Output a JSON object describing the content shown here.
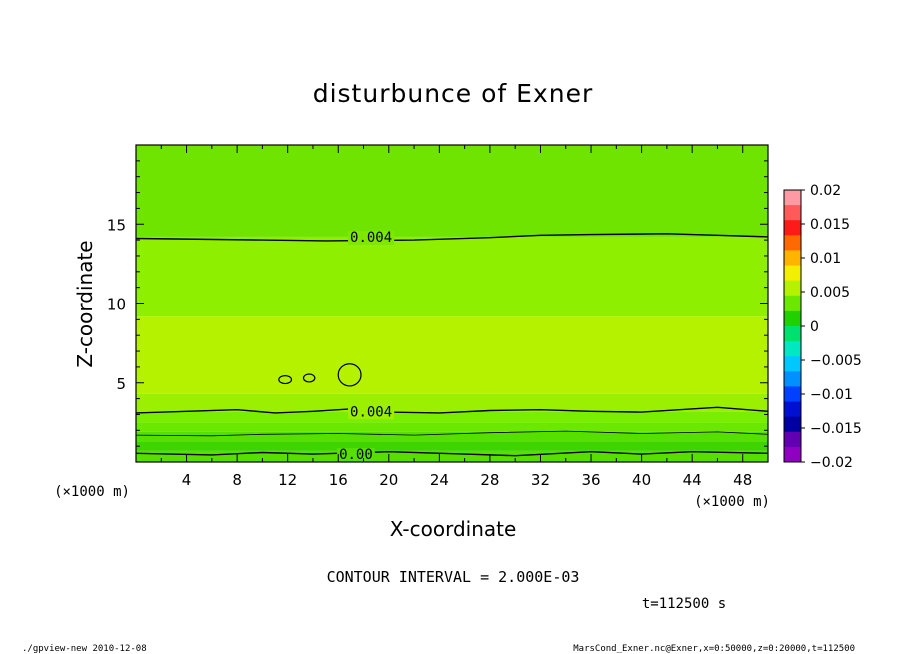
{
  "chart_data": {
    "type": "heatmap",
    "title": "disturbunce of Exner",
    "xlabel": "X-coordinate",
    "ylabel": "Z-coordinate",
    "x_unit": "(×1000 m)",
    "y_unit": "(×1000 m)",
    "xlim": [
      0,
      50
    ],
    "ylim": [
      0,
      20
    ],
    "x_ticks": [
      "4",
      "8",
      "12",
      "16",
      "20",
      "24",
      "28",
      "32",
      "36",
      "40",
      "44",
      "48"
    ],
    "y_ticks": [
      "5",
      "10",
      "15"
    ],
    "contour_labels": [
      {
        "text": "0.004",
        "x": 18.6,
        "z": 14.2
      },
      {
        "text": "0.004",
        "x": 18.6,
        "z": 3.2
      },
      {
        "text": "0.00",
        "x": 17.4,
        "z": 0.5
      }
    ],
    "contours": [
      {
        "level": 0.004,
        "z_profile": [
          [
            0,
            14.1
          ],
          [
            10,
            14.0
          ],
          [
            15,
            13.95
          ],
          [
            22,
            14.0
          ],
          [
            28,
            14.15
          ],
          [
            32,
            14.3
          ],
          [
            36,
            14.35
          ],
          [
            42,
            14.4
          ],
          [
            46,
            14.3
          ],
          [
            50,
            14.2
          ]
        ]
      },
      {
        "level": 0.004,
        "z_profile": [
          [
            0,
            3.1
          ],
          [
            4,
            3.2
          ],
          [
            8,
            3.3
          ],
          [
            11,
            3.1
          ],
          [
            14,
            3.2
          ],
          [
            18,
            3.4
          ],
          [
            20,
            3.15
          ],
          [
            24,
            3.1
          ],
          [
            28,
            3.25
          ],
          [
            32,
            3.3
          ],
          [
            36,
            3.2
          ],
          [
            40,
            3.15
          ],
          [
            46,
            3.45
          ],
          [
            50,
            3.2
          ]
        ]
      },
      {
        "level": 0.002,
        "z_profile": [
          [
            0,
            1.7
          ],
          [
            6,
            1.65
          ],
          [
            10,
            1.75
          ],
          [
            16,
            1.8
          ],
          [
            22,
            1.7
          ],
          [
            28,
            1.85
          ],
          [
            34,
            1.95
          ],
          [
            40,
            1.8
          ],
          [
            46,
            1.9
          ],
          [
            50,
            1.75
          ]
        ]
      },
      {
        "level": 0.0,
        "z_profile": [
          [
            0,
            0.55
          ],
          [
            6,
            0.45
          ],
          [
            10,
            0.6
          ],
          [
            14,
            0.5
          ],
          [
            20,
            0.65
          ],
          [
            26,
            0.5
          ],
          [
            30,
            0.4
          ],
          [
            36,
            0.65
          ],
          [
            40,
            0.5
          ],
          [
            44,
            0.65
          ],
          [
            50,
            0.55
          ]
        ]
      }
    ],
    "closed_contours": [
      {
        "x": 11.8,
        "z": 5.2,
        "rx": 0.5,
        "rz": 0.25
      },
      {
        "x": 13.7,
        "z": 5.3,
        "rx": 0.45,
        "rz": 0.25
      },
      {
        "x": 16.9,
        "z": 5.5,
        "rx": 0.9,
        "rz": 0.7
      }
    ],
    "fill_bands": [
      {
        "z_from": 0.0,
        "z_to": 0.7,
        "color": "#55e000"
      },
      {
        "z_from": 0.7,
        "z_to": 1.3,
        "color": "#3ed400"
      },
      {
        "z_from": 1.3,
        "z_to": 1.9,
        "color": "#55e000"
      },
      {
        "z_from": 1.9,
        "z_to": 2.5,
        "color": "#6ae800"
      },
      {
        "z_from": 2.5,
        "z_to": 3.2,
        "color": "#7aee00"
      },
      {
        "z_from": 3.2,
        "z_to": 4.3,
        "color": "#9af000"
      },
      {
        "z_from": 4.3,
        "z_to": 9.2,
        "color": "#b4f200"
      },
      {
        "z_from": 9.2,
        "z_to": 14.2,
        "color": "#8ef000"
      },
      {
        "z_from": 14.2,
        "z_to": 20.0,
        "color": "#6ee400"
      }
    ],
    "colorbar": {
      "labels": [
        "0.02",
        "0.015",
        "0.01",
        "0.005",
        "0",
        "−0.005",
        "−0.01",
        "−0.015",
        "−0.02"
      ],
      "colors": [
        "#ff9aa4",
        "#ff5a5a",
        "#ff1a1a",
        "#ff6a00",
        "#ffb400",
        "#f2f000",
        "#b4f200",
        "#6ae800",
        "#22d000",
        "#00e070",
        "#00e8c0",
        "#00c8ff",
        "#0090ff",
        "#0040ff",
        "#0010d0",
        "#0000a0",
        "#6000b0",
        "#9000c0"
      ],
      "vmin": -0.02,
      "vmax": 0.02
    },
    "contour_interval_text": "CONTOUR INTERVAL = 2.000E-03",
    "time_text": "t=112500  s"
  },
  "footer": {
    "left": "./gpview-new  2010-12-08",
    "right": "MarsCond_Exner.nc@Exner,x=0:50000,z=0:20000,t=112500"
  }
}
